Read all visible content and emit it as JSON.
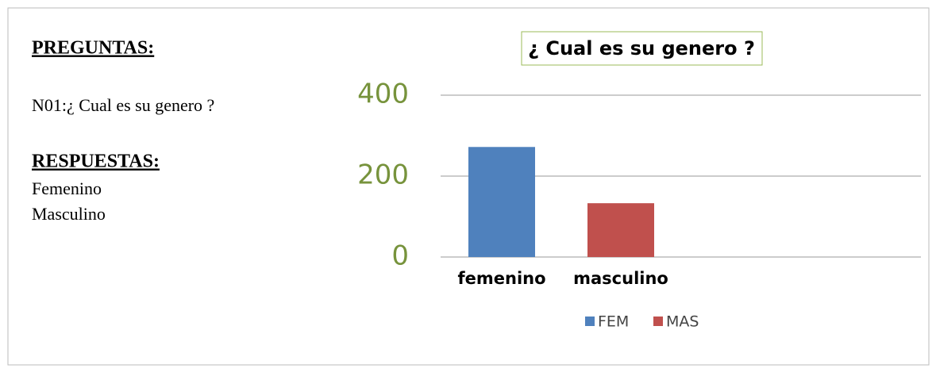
{
  "document": {
    "questions_heading": "PREGUNTAS:",
    "question": "N01:¿ Cual es su genero ?",
    "answers_heading": "RESPUESTAS:",
    "answers": [
      "Femenino",
      "Masculino"
    ]
  },
  "chart_data": {
    "type": "bar",
    "title": "¿ Cual es su genero ?",
    "categories": [
      "femenino",
      "masculino"
    ],
    "series": [
      {
        "name": "FEM",
        "color": "#4f81bd",
        "values": [
          272,
          null
        ]
      },
      {
        "name": "MAS",
        "color": "#c0504d",
        "values": [
          null,
          133
        ]
      }
    ],
    "ylim": [
      0,
      400
    ],
    "yticks": [
      0,
      200,
      400
    ],
    "grid": true,
    "legend": "bottom"
  }
}
